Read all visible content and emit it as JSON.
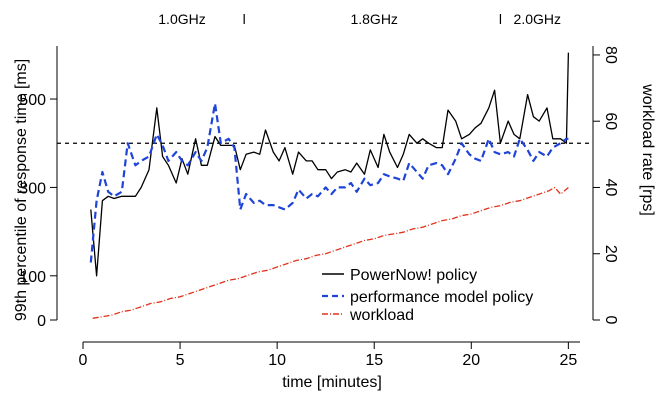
{
  "chart_data": {
    "type": "line",
    "title": "",
    "xlabel": "time [minutes]",
    "ylabel": "99th percentile of response time [ms]",
    "y2label": "workload rate [rps]",
    "xlim": [
      0,
      25.6
    ],
    "ylim": [
      0,
      620
    ],
    "y2lim": [
      0,
      82.7
    ],
    "x_ticks": [
      "0",
      "5",
      "10",
      "15",
      "20",
      "25"
    ],
    "y_ticks": [
      "0",
      "100",
      "300",
      "500"
    ],
    "y2_ticks": [
      "0",
      "20",
      "40",
      "60",
      "80"
    ],
    "reference_line": {
      "y": 400,
      "style": "dashed",
      "color": "#000000"
    },
    "frequency_annotations": [
      {
        "label": "1.0GHz",
        "x": 5.1
      },
      {
        "label": "1.8GHz",
        "x": 15.0
      },
      {
        "label": "2.0GHz",
        "x": 23.4
      }
    ],
    "frequency_markers": [
      {
        "label": "l",
        "x": 8.3
      },
      {
        "label": "l",
        "x": 21.5
      }
    ],
    "legend_position": "bottom-right",
    "series": [
      {
        "name": "PowerNow! policy",
        "axis": "left",
        "color": "#000000",
        "style": "solid",
        "x": [
          0.4,
          0.7,
          1.0,
          1.3,
          1.6,
          2.0,
          2.3,
          2.7,
          3.0,
          3.4,
          3.8,
          4.1,
          4.4,
          4.8,
          5.1,
          5.4,
          5.8,
          6.1,
          6.4,
          6.8,
          7.1,
          7.5,
          7.8,
          8.1,
          8.4,
          8.8,
          9.1,
          9.4,
          9.8,
          10.1,
          10.4,
          10.8,
          11.1,
          11.5,
          11.8,
          12.1,
          12.5,
          12.8,
          13.1,
          13.5,
          13.8,
          14.1,
          14.5,
          14.8,
          15.2,
          15.5,
          15.8,
          16.2,
          16.5,
          16.8,
          17.2,
          17.5,
          17.8,
          18.2,
          18.5,
          18.8,
          19.2,
          19.5,
          19.9,
          20.2,
          20.5,
          20.9,
          21.2,
          21.5,
          21.9,
          22.2,
          22.5,
          22.9,
          23.2,
          23.5,
          23.9,
          24.2,
          24.6,
          24.9,
          25.0
        ],
        "values": [
          250,
          100,
          270,
          280,
          275,
          280,
          280,
          280,
          300,
          340,
          480,
          370,
          350,
          310,
          365,
          330,
          410,
          350,
          350,
          415,
          395,
          395,
          395,
          340,
          375,
          380,
          375,
          430,
          380,
          360,
          390,
          330,
          380,
          360,
          360,
          340,
          340,
          320,
          335,
          340,
          335,
          355,
          330,
          385,
          345,
          420,
          380,
          345,
          375,
          420,
          400,
          410,
          400,
          390,
          390,
          475,
          450,
          410,
          420,
          435,
          445,
          480,
          520,
          400,
          450,
          420,
          410,
          510,
          460,
          450,
          480,
          410,
          410,
          400,
          605
        ]
      },
      {
        "name": "performance model policy",
        "axis": "left",
        "color": "#1f44d8",
        "style": "dashed",
        "x": [
          0.4,
          0.7,
          1.0,
          1.3,
          1.6,
          2.0,
          2.3,
          2.7,
          3.0,
          3.4,
          3.8,
          4.1,
          4.4,
          4.8,
          5.1,
          5.4,
          5.8,
          6.1,
          6.4,
          6.8,
          7.1,
          7.5,
          7.8,
          8.1,
          8.4,
          8.8,
          9.1,
          9.4,
          9.8,
          10.1,
          10.4,
          10.8,
          11.1,
          11.5,
          11.8,
          12.1,
          12.5,
          12.8,
          13.1,
          13.5,
          13.8,
          14.1,
          14.5,
          14.8,
          15.2,
          15.5,
          15.8,
          16.2,
          16.5,
          16.8,
          17.2,
          17.5,
          17.8,
          18.2,
          18.5,
          18.8,
          19.2,
          19.5,
          19.9,
          20.2,
          20.5,
          20.9,
          21.2,
          21.5,
          21.9,
          22.2,
          22.5,
          22.9,
          23.2,
          23.5,
          23.9,
          24.2,
          24.6,
          24.9,
          25.0
        ],
        "values": [
          130,
          270,
          335,
          290,
          280,
          290,
          400,
          350,
          360,
          370,
          420,
          395,
          360,
          380,
          360,
          350,
          380,
          360,
          390,
          490,
          400,
          410,
          390,
          250,
          285,
          265,
          270,
          260,
          260,
          255,
          250,
          265,
          295,
          275,
          285,
          280,
          300,
          285,
          300,
          300,
          310,
          290,
          320,
          305,
          310,
          330,
          325,
          320,
          315,
          355,
          335,
          320,
          350,
          355,
          350,
          330,
          365,
          400,
          375,
          365,
          360,
          410,
          380,
          375,
          380,
          370,
          410,
          385,
          360,
          380,
          370,
          390,
          400,
          410,
          410
        ]
      },
      {
        "name": "workload",
        "axis": "right",
        "color": "#e0321c",
        "style": "dotdash",
        "x": [
          0.5,
          1.0,
          1.5,
          2.0,
          2.5,
          3.0,
          3.5,
          4.0,
          4.5,
          5.0,
          5.5,
          6.0,
          6.5,
          7.0,
          7.5,
          8.0,
          8.5,
          9.0,
          9.5,
          10.0,
          10.5,
          11.0,
          11.5,
          12.0,
          12.5,
          13.0,
          13.5,
          14.0,
          14.5,
          15.0,
          15.5,
          16.0,
          16.5,
          17.0,
          17.5,
          18.0,
          18.5,
          19.0,
          19.5,
          20.0,
          20.5,
          21.0,
          21.5,
          22.0,
          22.5,
          23.0,
          23.5,
          24.0,
          24.3,
          24.6,
          25.0
        ],
        "values": [
          0.5,
          1.0,
          1.5,
          2.5,
          3.0,
          4.0,
          5.0,
          5.5,
          6.5,
          7.0,
          8.0,
          9.0,
          10.0,
          11.0,
          12.0,
          12.5,
          13.5,
          14.5,
          15.0,
          16.0,
          17.0,
          18.0,
          18.5,
          19.5,
          20.0,
          21.0,
          22.0,
          23.0,
          24.0,
          24.5,
          25.5,
          26.0,
          26.5,
          27.5,
          28.0,
          29.0,
          30.0,
          30.5,
          31.5,
          32.0,
          33.0,
          34.0,
          34.5,
          35.5,
          36.0,
          37.0,
          38.0,
          39.0,
          40.0,
          38.0,
          40.0
        ]
      }
    ]
  }
}
